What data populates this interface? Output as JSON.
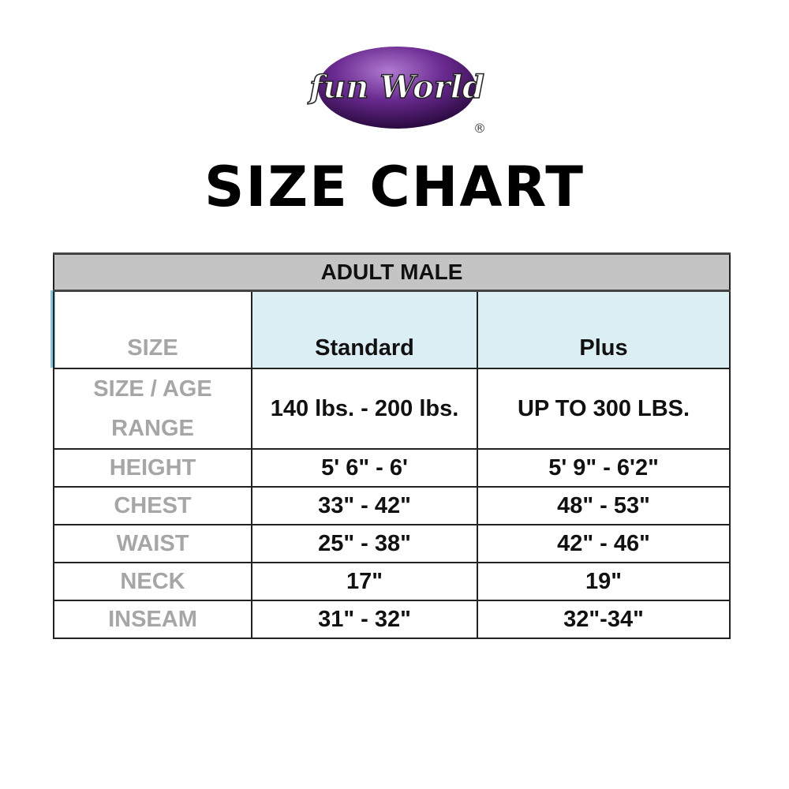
{
  "logo": {
    "text": "fun World",
    "mark": "®",
    "color": "#5b1f7a"
  },
  "title": "SIZE CHART",
  "table": {
    "group": "ADULT MALE",
    "headers": [
      "SIZE",
      "Standard",
      "Plus"
    ],
    "header_bg": "#daeef3",
    "rows": [
      {
        "label": "SIZE / AGE RANGE",
        "standard": "140 lbs. - 200 lbs.",
        "plus": "UP TO 300 LBS."
      },
      {
        "label": "HEIGHT",
        "standard": "5' 6\" - 6'",
        "plus": "5' 9\" - 6'2\""
      },
      {
        "label": "CHEST",
        "standard": "33\" - 42\"",
        "plus": "48\" - 53\""
      },
      {
        "label": "WAIST",
        "standard": "25\" - 38\"",
        "plus": "42\" - 46\""
      },
      {
        "label": "NECK",
        "standard": "17\"",
        "plus": "19\""
      },
      {
        "label": "INSEAM",
        "standard": "31\" - 32\"",
        "plus": "32\"-34\""
      }
    ]
  }
}
